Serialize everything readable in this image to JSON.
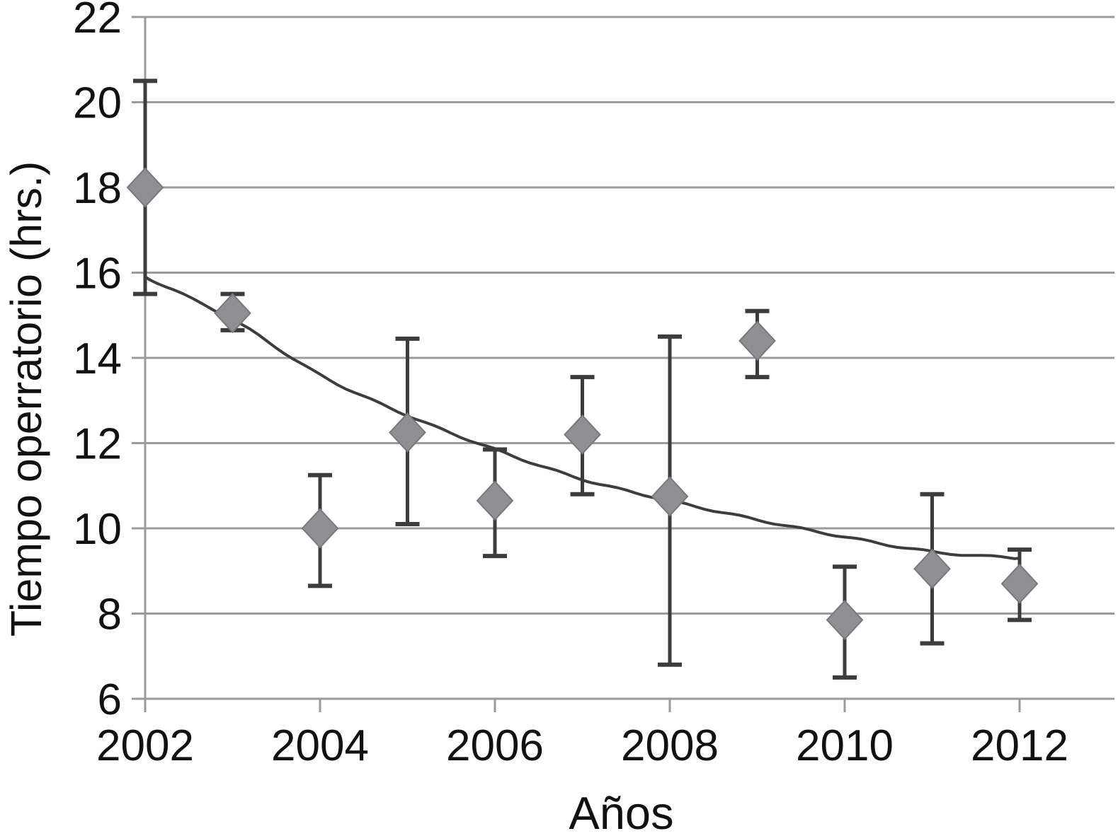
{
  "chart_data": {
    "type": "scatter",
    "title": "",
    "xlabel": "Años",
    "ylabel": "Tiempo operratorio (hrs.)",
    "x": [
      2002,
      2003,
      2004,
      2005,
      2006,
      2007,
      2008,
      2009,
      2010,
      2011,
      2012
    ],
    "xticks": [
      2002,
      2004,
      2006,
      2008,
      2010,
      2012
    ],
    "yticks": [
      6,
      8,
      10,
      12,
      14,
      16,
      18,
      20,
      22
    ],
    "xlim": [
      2002,
      2012
    ],
    "ylim": [
      6,
      22
    ],
    "grid": "horizontal gridlines at every y tick",
    "legend": "none",
    "series": [
      {
        "marker": "diamond",
        "values": [
          18.0,
          15.05,
          10.0,
          12.25,
          10.65,
          12.2,
          10.75,
          14.4,
          7.85,
          9.05,
          8.7
        ],
        "err_high": [
          20.5,
          15.5,
          11.25,
          14.45,
          11.85,
          13.55,
          14.5,
          15.1,
          9.1,
          10.8,
          9.5
        ],
        "err_low": [
          15.5,
          14.65,
          8.65,
          10.1,
          9.35,
          10.8,
          6.8,
          13.55,
          6.5,
          7.3,
          7.85
        ]
      }
    ],
    "trend_line": {
      "shape": "smooth decreasing curve",
      "values": [
        15.9,
        14.9,
        13.6,
        12.65,
        11.85,
        11.15,
        10.65,
        10.2,
        9.8,
        9.45,
        9.3
      ]
    },
    "colors": {
      "background": "#ffffff",
      "marker": "#8f9094",
      "marker_edge": "#77787b",
      "error_bar": "#3c3c3c",
      "grid": "#9b9b9b",
      "trend": "#3d3d3d",
      "text": "#111111"
    }
  }
}
